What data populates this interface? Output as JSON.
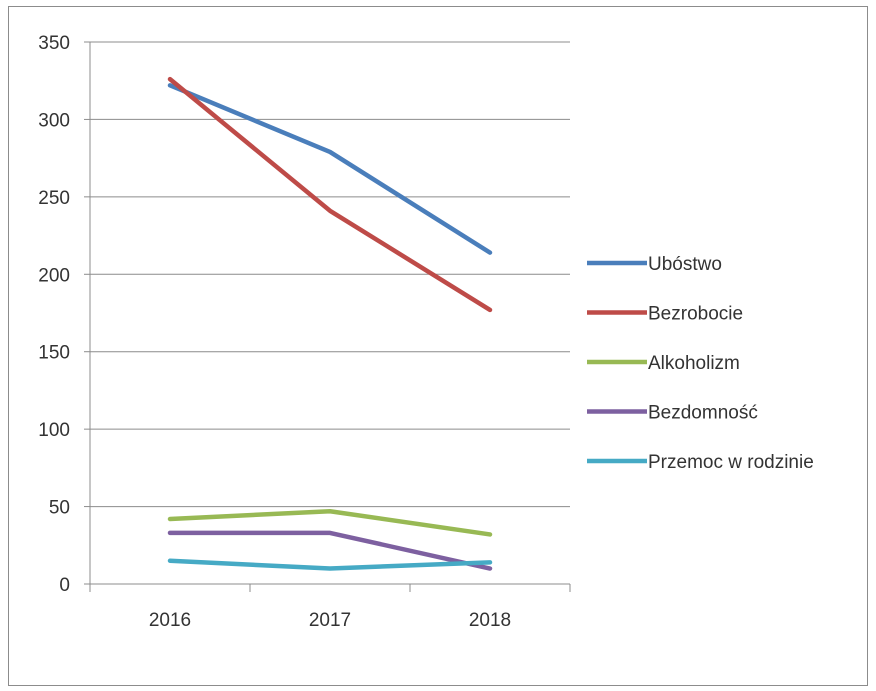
{
  "chart_data": {
    "type": "line",
    "categories": [
      "2016",
      "2017",
      "2018"
    ],
    "ylim": [
      0,
      350
    ],
    "yticks": [
      0,
      50,
      100,
      150,
      200,
      250,
      300,
      350
    ],
    "grid": "horizontal",
    "legend_position": "right",
    "series": [
      {
        "name": "Ubóstwo",
        "color": "#4a7ebb",
        "values": [
          322,
          279,
          214
        ]
      },
      {
        "name": "Bezrobocie",
        "color": "#be4b48",
        "values": [
          326,
          241,
          177
        ]
      },
      {
        "name": "Alkoholizm",
        "color": "#98b954",
        "values": [
          42,
          47,
          32
        ]
      },
      {
        "name": "Bezdomność",
        "color": "#7d60a0",
        "values": [
          33,
          33,
          10
        ]
      },
      {
        "name": "Przemoc w rodzinie",
        "color": "#46aac5",
        "values": [
          15,
          10,
          14
        ]
      }
    ]
  }
}
